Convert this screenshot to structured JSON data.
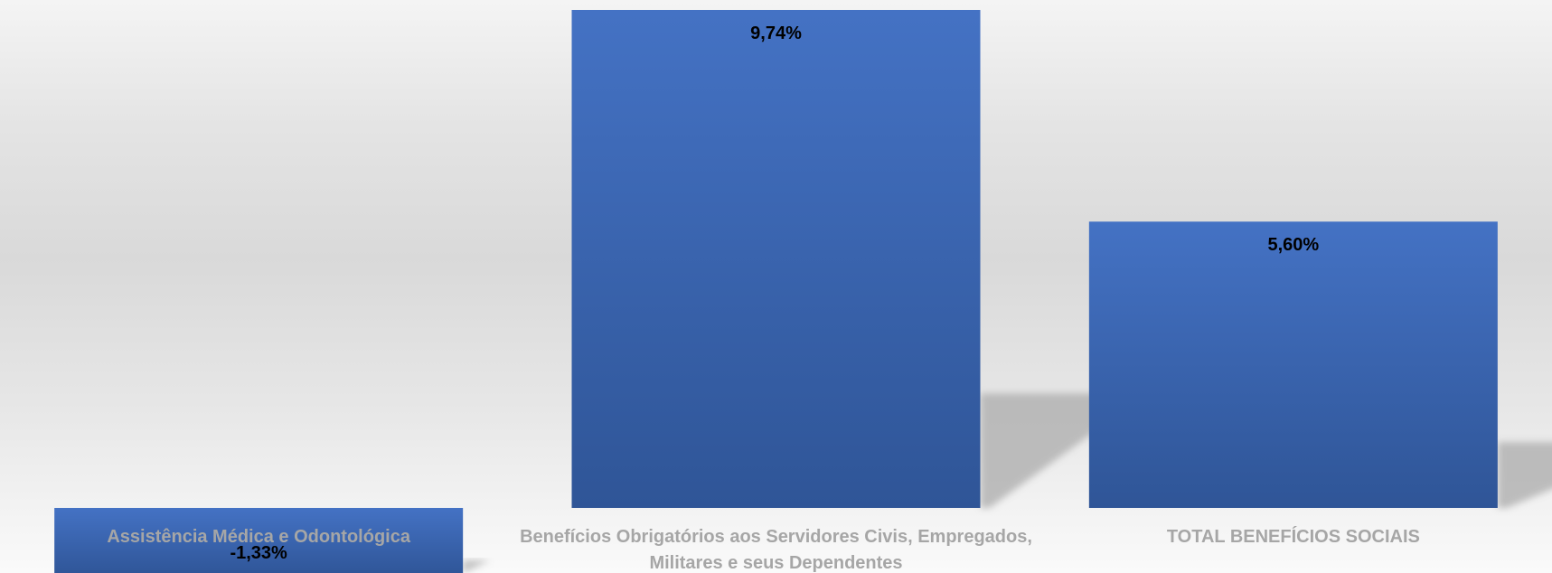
{
  "chart_data": {
    "type": "bar",
    "title": "",
    "xlabel": "",
    "ylabel": "",
    "categories": [
      [
        "Assistência Médica e Odontológica"
      ],
      [
        "Benefícios Obrigatórios aos Servidores Civis, Empregados,",
        "Militares e seus Dependentes"
      ],
      [
        "TOTAL BENEFÍCIOS SOCIAIS"
      ]
    ],
    "values": [
      -1.33,
      9.74,
      5.6
    ],
    "value_labels": [
      "-1,33%",
      "9,74%",
      "5,60%"
    ],
    "ylim": [
      -1.33,
      9.74
    ],
    "grid": false,
    "legend": "none",
    "colors": {
      "bar_top": "#4472c4",
      "bar_bottom": "#2f5597",
      "data_label": "#000000",
      "category_label": "#a6a6a6",
      "shadow": "#b3b3b3"
    }
  }
}
